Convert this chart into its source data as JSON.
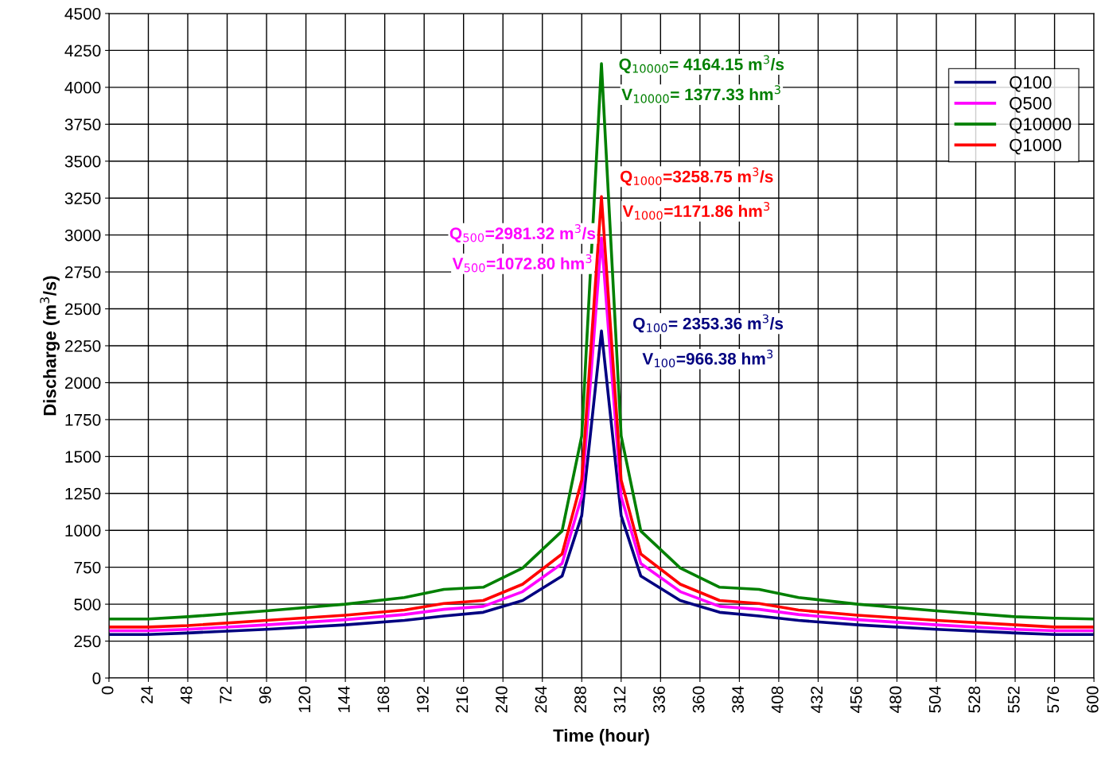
{
  "chart_data": {
    "type": "line",
    "xlabel": "Time (hour)",
    "ylabel": "Discharge (m$^{3}$/s)",
    "x": [
      0,
      24,
      48,
      96,
      144,
      180,
      204,
      228,
      252,
      276,
      288,
      300,
      312,
      324,
      348,
      372,
      396,
      420,
      456,
      504,
      552,
      576,
      600
    ],
    "series": [
      {
        "name": "Q100",
        "color": "#000080",
        "values": [
          295,
          295,
          305,
          330,
          360,
          390,
          420,
          445,
          525,
          690,
          1100,
          2350,
          1100,
          690,
          525,
          445,
          420,
          390,
          360,
          330,
          305,
          295,
          295
        ]
      },
      {
        "name": "Q500",
        "color": "#ff00ff",
        "values": [
          320,
          320,
          330,
          360,
          395,
          430,
          465,
          485,
          585,
          775,
          1230,
          2980,
          1230,
          775,
          585,
          485,
          465,
          430,
          395,
          360,
          330,
          320,
          320
        ]
      },
      {
        "name": "Q10000",
        "color": "#008000",
        "values": [
          400,
          400,
          415,
          455,
          500,
          545,
          600,
          615,
          745,
          995,
          1640,
          4160,
          1640,
          995,
          745,
          615,
          600,
          545,
          500,
          455,
          415,
          405,
          400
        ]
      },
      {
        "name": "Q1000",
        "color": "#ff0000",
        "values": [
          345,
          345,
          355,
          390,
          425,
          460,
          505,
          525,
          635,
          840,
          1340,
          3260,
          1340,
          840,
          635,
          525,
          505,
          460,
          425,
          390,
          360,
          345,
          345
        ]
      }
    ],
    "annotations": [
      "Q$_{10000}$= 4164.15 m$^{3}$/s",
      "V$_{10000}$= 1377.33 hm$^{3}$",
      "Q$_{1000}$=3258.75 m$^{3}$/s",
      "V$_{1000}$=1171.86 hm$^{3}$",
      "Q$_{500}$=2981.32 m$^{3}$/s",
      "V$_{500}$=1072.80 hm$^{3}$",
      "Q$_{100}$= 2353.36 m$^{3}$/s",
      "V$_{100}$=966.38 hm$^{3}$"
    ],
    "xlim": [
      0,
      600
    ],
    "xticks": [
      0,
      24,
      48,
      72,
      96,
      120,
      144,
      168,
      192,
      216,
      240,
      264,
      288,
      312,
      336,
      360,
      384,
      408,
      432,
      456,
      480,
      504,
      528,
      552,
      576,
      600
    ],
    "ylim": [
      0,
      4500
    ],
    "yticks": [
      0,
      250,
      500,
      750,
      1000,
      1250,
      1500,
      1750,
      2000,
      2250,
      2500,
      2750,
      3000,
      3250,
      3500,
      3750,
      4000,
      4250,
      4500
    ],
    "grid": true,
    "legend": "top right",
    "marker": "none",
    "line_style": "solid"
  }
}
